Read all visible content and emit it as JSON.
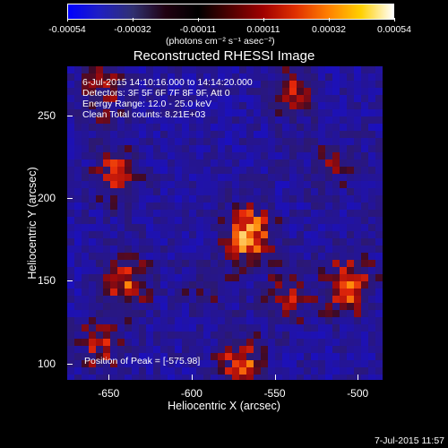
{
  "colorbar": {
    "ticks": [
      "-0.00054",
      "-0.00032",
      "-0.00011",
      "0.00011",
      "0.00032",
      "0.00054"
    ],
    "units": "(photons cm⁻² s⁻¹ asec⁻²)",
    "colors": [
      "#0000ff",
      "#2020c0",
      "#303070",
      "#200010",
      "#000000",
      "#500000",
      "#a00000",
      "#e03000",
      "#ff8000",
      "#ffd000",
      "#ffffff"
    ]
  },
  "chart_data": {
    "type": "heatmap",
    "title": "Reconstructed RHESSI Image",
    "xlabel": "Heliocentric X (arcsec)",
    "ylabel": "Heliocentric Y (arcsec)",
    "xlim": [
      -675,
      -485
    ],
    "ylim": [
      90,
      280
    ],
    "xticks": [
      -650,
      -600,
      -550,
      -500
    ],
    "yticks": [
      100,
      150,
      200,
      250
    ],
    "annotations": [
      "6-Jul-2015 14:10:16.000 to 14:14:20.000",
      "Detectors: 3F 5F 6F 7F 8F 9F, Att 0",
      "Energy Range: 12.0 - 25.0 keV",
      "Clean     Total counts: 8.21E+03"
    ],
    "peak_label": "Position of Peak = [-575.98]",
    "color_range": [
      -0.00054,
      0.00054
    ],
    "sources": [
      {
        "x": -565,
        "y": 178,
        "intensity": 0.00054
      },
      {
        "x": -640,
        "y": 148,
        "intensity": 0.0004
      },
      {
        "x": -645,
        "y": 215,
        "intensity": 0.00035
      },
      {
        "x": -505,
        "y": 148,
        "intensity": 0.00045
      },
      {
        "x": -570,
        "y": 100,
        "intensity": 0.00042
      },
      {
        "x": -655,
        "y": 112,
        "intensity": 0.0003
      },
      {
        "x": -590,
        "y": 148,
        "intensity": 0.0002
      },
      {
        "x": -540,
        "y": 140,
        "intensity": 0.00028
      },
      {
        "x": -540,
        "y": 265,
        "intensity": 0.0003
      },
      {
        "x": -655,
        "y": 265,
        "intensity": 0.00028
      },
      {
        "x": -515,
        "y": 220,
        "intensity": 0.0002
      }
    ]
  },
  "footer": {
    "timestamp": "7-Jul-2015 11:57"
  }
}
